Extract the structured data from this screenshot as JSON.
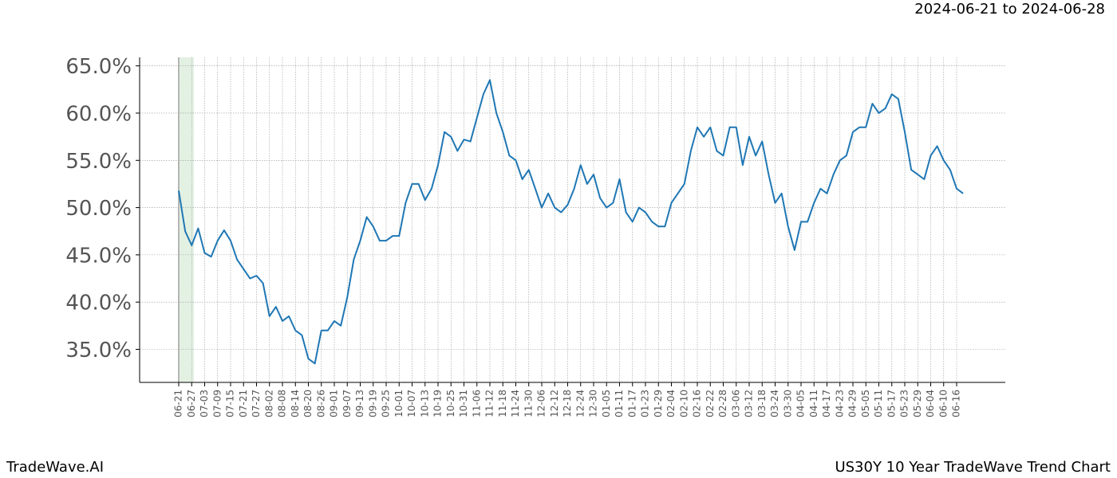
{
  "chart_data": {
    "type": "line",
    "subtitle": "2024-06-21 to 2024-06-28",
    "footer_left": "TradeWave.AI",
    "footer_right": "US30Y 10 Year TradeWave Trend Chart",
    "color": "#1f77b4",
    "grid": true,
    "ylim": [
      31.5,
      65.9
    ],
    "yticks": [
      {
        "value": 35,
        "label": "35.0%"
      },
      {
        "value": 40,
        "label": "40.0%"
      },
      {
        "value": 45,
        "label": "45.0%"
      },
      {
        "value": 50,
        "label": "50.0%"
      },
      {
        "value": 55,
        "label": "55.0%"
      },
      {
        "value": 60,
        "label": "60.0%"
      },
      {
        "value": 65,
        "label": "65.0%"
      }
    ],
    "categories": [
      "06-21",
      null,
      "06-27",
      null,
      "07-03",
      null,
      "07-09",
      null,
      "07-15",
      null,
      "07-21",
      null,
      "07-27",
      null,
      "08-02",
      null,
      "08-08",
      null,
      "08-14",
      null,
      "08-20",
      null,
      "08-26",
      null,
      "09-01",
      null,
      "09-07",
      null,
      "09-13",
      null,
      "09-19",
      null,
      "09-25",
      null,
      "10-01",
      null,
      "10-07",
      null,
      "10-13",
      null,
      "10-19",
      null,
      "10-25",
      null,
      "10-31",
      null,
      "11-06",
      null,
      "11-12",
      null,
      "11-18",
      null,
      "11-24",
      null,
      "11-30",
      null,
      "12-06",
      null,
      "12-12",
      null,
      "12-18",
      null,
      "12-24",
      null,
      "12-30",
      null,
      "01-05",
      null,
      "01-11",
      null,
      "01-17",
      null,
      "01-23",
      null,
      "01-29",
      null,
      "02-04",
      null,
      "02-10",
      null,
      "02-16",
      null,
      "02-22",
      null,
      "02-28",
      null,
      "03-06",
      null,
      "03-12",
      null,
      "03-18",
      null,
      "03-24",
      null,
      "03-30",
      null,
      "04-05",
      null,
      "04-11",
      null,
      "04-17",
      null,
      "04-23",
      null,
      "04-29",
      null,
      "05-05",
      null,
      "05-11",
      null,
      "05-17",
      null,
      "05-23",
      null,
      "05-29",
      null,
      "06-04",
      null,
      "06-10",
      null,
      "06-16",
      null
    ],
    "values": [
      51.8,
      47.5,
      46.0,
      47.8,
      45.2,
      44.8,
      46.5,
      47.6,
      46.5,
      44.5,
      43.5,
      42.5,
      42.8,
      42.0,
      38.5,
      39.5,
      38.0,
      38.5,
      37.0,
      36.5,
      34.0,
      33.5,
      37.0,
      37.0,
      38.0,
      37.5,
      40.5,
      44.5,
      46.5,
      49.0,
      48.0,
      46.5,
      46.5,
      47.0,
      47.0,
      50.5,
      52.5,
      52.5,
      50.8,
      52.0,
      54.5,
      58.0,
      57.5,
      56.0,
      57.2,
      57.0,
      59.5,
      62.0,
      63.5,
      60.0,
      58.0,
      55.5,
      55.0,
      53.0,
      54.0,
      52.0,
      50.0,
      51.5,
      50.0,
      49.5,
      50.3,
      52.0,
      54.5,
      52.5,
      53.5,
      51.0,
      50.0,
      50.5,
      53.0,
      49.5,
      48.5,
      50.0,
      49.5,
      48.5,
      48.0,
      48.0,
      50.5,
      51.5,
      52.5,
      56.0,
      58.5,
      57.5,
      58.5,
      56.0,
      55.5,
      58.5,
      58.5,
      54.5,
      57.5,
      55.5,
      57.0,
      53.5,
      50.5,
      51.5,
      48.0,
      45.5,
      48.5,
      48.5,
      50.5,
      52.0,
      51.5,
      53.5,
      55.0,
      55.5,
      58.0,
      58.5,
      58.5,
      61.0,
      60.0,
      60.5,
      62.0,
      61.5,
      58.0,
      54.0,
      53.5,
      53.0,
      55.5,
      56.5,
      55.0,
      54.0,
      52.0,
      51.5
    ]
  }
}
